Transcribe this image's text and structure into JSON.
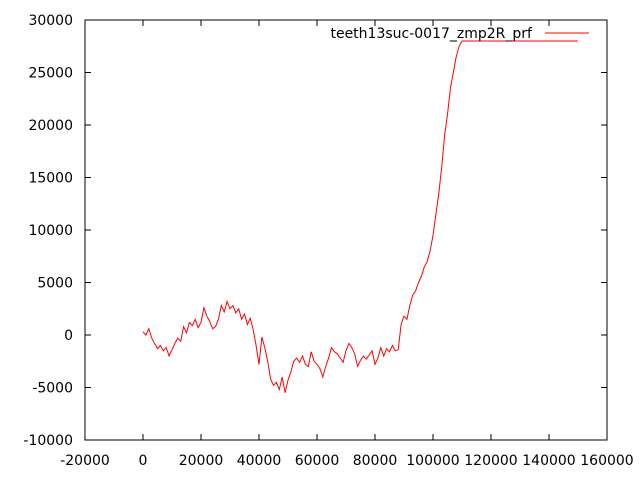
{
  "chart_data": {
    "type": "line",
    "title": "",
    "xlabel": "",
    "ylabel": "",
    "xlim": [
      -20000,
      160000
    ],
    "ylim": [
      -10000,
      30000
    ],
    "xticks": [
      -20000,
      0,
      20000,
      40000,
      60000,
      80000,
      100000,
      120000,
      140000,
      160000
    ],
    "yticks": [
      -10000,
      -5000,
      0,
      5000,
      10000,
      15000,
      20000,
      25000,
      30000
    ],
    "xtick_labels": [
      "-20000",
      "0",
      "20000",
      "40000",
      "60000",
      "80000",
      "100000",
      "120000",
      "140000",
      "160000"
    ],
    "ytick_labels": [
      "-10000",
      "-5000",
      "0",
      "5000",
      "10000",
      "15000",
      "20000",
      "25000",
      "30000"
    ],
    "grid": false,
    "legend_position": "top-right",
    "series": [
      {
        "name": "teeth13suc-0017_zmp2R_prf",
        "color": "#ff0000",
        "x": [
          0,
          1000,
          2000,
          3000,
          4000,
          5000,
          6000,
          7000,
          8000,
          9000,
          10000,
          11000,
          12000,
          13000,
          14000,
          15000,
          16000,
          17000,
          18000,
          19000,
          20000,
          21000,
          22000,
          23000,
          24000,
          25000,
          26000,
          27000,
          28000,
          29000,
          30000,
          31000,
          32000,
          33000,
          34000,
          35000,
          36000,
          37000,
          38000,
          39000,
          40000,
          41000,
          42000,
          43000,
          44000,
          45000,
          46000,
          47000,
          48000,
          49000,
          50000,
          51000,
          52000,
          53000,
          54000,
          55000,
          56000,
          57000,
          58000,
          59000,
          60000,
          61000,
          62000,
          63000,
          64000,
          65000,
          66000,
          67000,
          68000,
          69000,
          70000,
          71000,
          72000,
          73000,
          74000,
          75000,
          76000,
          77000,
          78000,
          79000,
          80000,
          81000,
          82000,
          83000,
          84000,
          85000,
          86000,
          87000,
          88000,
          89000,
          90000,
          91000,
          92000,
          93000,
          94000,
          95000,
          96000,
          97000,
          98000,
          99000,
          100000,
          101000,
          102000,
          103000,
          104000,
          105000,
          106000,
          107000,
          108000,
          109000,
          110000,
          112000,
          115000,
          120000,
          125000,
          130000,
          135000,
          140000,
          150000
        ],
        "values": [
          300,
          0,
          600,
          -300,
          -800,
          -1300,
          -1000,
          -1500,
          -1200,
          -2000,
          -1400,
          -800,
          -300,
          -600,
          800,
          200,
          1200,
          900,
          1500,
          700,
          1200,
          2600,
          1800,
          1300,
          600,
          800,
          1500,
          2800,
          2200,
          3200,
          2500,
          2800,
          2100,
          2500,
          1500,
          2000,
          1000,
          1600,
          500,
          -1000,
          -2800,
          -200,
          -1200,
          -2500,
          -4200,
          -4800,
          -4500,
          -5200,
          -4000,
          -5500,
          -4300,
          -3500,
          -2500,
          -2200,
          -2600,
          -2000,
          -2800,
          -3000,
          -1600,
          -2500,
          -2800,
          -3200,
          -4000,
          -3000,
          -2200,
          -1200,
          -1600,
          -1800,
          -2200,
          -2600,
          -1500,
          -800,
          -1200,
          -1800,
          -3000,
          -2400,
          -2000,
          -2300,
          -1900,
          -1500,
          -2800,
          -2200,
          -1200,
          -2000,
          -1300,
          -1600,
          -1000,
          -1500,
          -1400,
          1000,
          1800,
          1500,
          2800,
          3800,
          4200,
          5000,
          5600,
          6500,
          7000,
          8000,
          9500,
          11500,
          13500,
          16000,
          19000,
          21000,
          23500,
          25000,
          26500,
          27500,
          28000,
          28000,
          28000,
          28000,
          28000,
          28000,
          28000,
          28000,
          28000
        ]
      }
    ]
  }
}
